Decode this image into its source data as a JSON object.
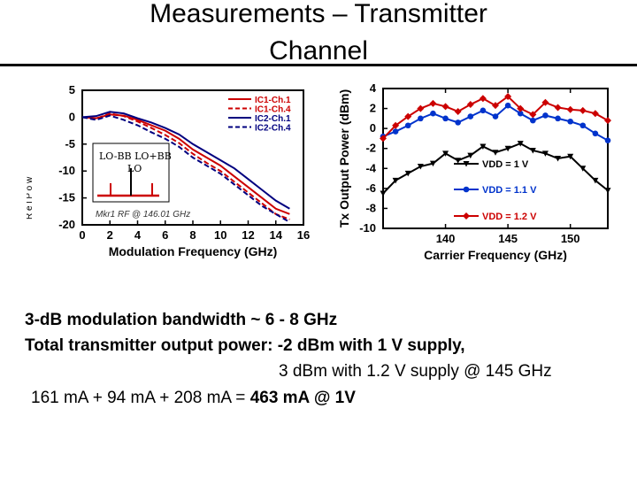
{
  "slide": {
    "title_line1": "Measurements – Transmitter",
    "title_line2": "Channel"
  },
  "bullets": {
    "b1": "3-dB modulation bandwidth ~ 6 - 8 GHz",
    "b2": "Total transmitter output power:  -2 dBm with 1 V supply,",
    "b3": "3 dBm with 1.2 V supply @ 145 GHz",
    "b4_plain": "161 mA + 94 mA + 208 mA = ",
    "b4_bold": "463 mA @ 1V"
  },
  "inset": {
    "lo_bb_label": "LO-BB LO+BB",
    "lo_label": "LO",
    "marker_text": "Mkr1 RF @ 146.01 GHz",
    "ylabel_fragment": "R e l P o w"
  },
  "chart_data": [
    {
      "type": "line",
      "title": "",
      "xlabel": "Modulation Frequency (GHz)",
      "ylabel": "",
      "xlim": [
        0,
        16
      ],
      "ylim": [
        -20,
        5
      ],
      "xticks": [
        "0",
        "2",
        "4",
        "6",
        "8",
        "10",
        "12",
        "14",
        "16"
      ],
      "yticks": [
        "5",
        "0",
        "-5",
        "-10",
        "-15",
        "-20"
      ],
      "x": [
        0,
        1,
        2,
        3,
        4,
        5,
        6,
        7,
        8,
        9,
        10,
        11,
        12,
        13,
        14,
        15
      ],
      "series": [
        {
          "name": "IC1-Ch.1",
          "color": "#cc0000",
          "dash": "solid",
          "values": [
            0,
            -0.2,
            0.5,
            0.3,
            -0.5,
            -1.5,
            -2.5,
            -4,
            -6,
            -7.5,
            -9,
            -11,
            -13,
            -15,
            -17,
            -18
          ]
        },
        {
          "name": "IC1-Ch.4",
          "color": "#cc0000",
          "dash": "dashed",
          "values": [
            0,
            -0.3,
            0.7,
            0.2,
            -0.8,
            -2,
            -3.3,
            -4.8,
            -6.8,
            -8.5,
            -10,
            -12,
            -14,
            -16,
            -18,
            -19
          ]
        },
        {
          "name": "IC2-Ch.1",
          "color": "#00007f",
          "dash": "solid",
          "values": [
            0,
            0.2,
            1,
            0.7,
            -0.2,
            -1,
            -2,
            -3.2,
            -5,
            -6.5,
            -8,
            -9.5,
            -11.5,
            -13.5,
            -15.5,
            -17
          ]
        },
        {
          "name": "IC2-Ch.4",
          "color": "#00007f",
          "dash": "dashed",
          "values": [
            0,
            -0.5,
            0.3,
            -0.5,
            -1.5,
            -2.8,
            -4,
            -5.5,
            -7.5,
            -9,
            -10.5,
            -12.5,
            -14.5,
            -16.5,
            -18,
            -19.5
          ]
        }
      ]
    },
    {
      "type": "line",
      "title": "",
      "xlabel": "Carrier Frequency (GHz)",
      "ylabel": "Tx Output Power (dBm)",
      "xlim": [
        135,
        153
      ],
      "ylim": [
        -10,
        4
      ],
      "xticks": [
        "140",
        "145",
        "150"
      ],
      "yticks": [
        "4",
        "2",
        "0",
        "-2",
        "-4",
        "-6",
        "-8",
        "-10"
      ],
      "x": [
        135,
        136,
        137,
        138,
        139,
        140,
        141,
        142,
        143,
        144,
        145,
        146,
        147,
        148,
        149,
        150,
        151,
        152,
        153
      ],
      "series": [
        {
          "name": "VDD = 1 V",
          "color": "#000000",
          "marker": "triangle-down",
          "values": [
            -6.5,
            -5.2,
            -4.5,
            -3.8,
            -3.5,
            -2.5,
            -3.2,
            -2.7,
            -1.8,
            -2.4,
            -2.0,
            -1.5,
            -2.2,
            -2.5,
            -3.0,
            -2.8,
            -4.0,
            -5.2,
            -6.2
          ]
        },
        {
          "name": "VDD = 1.1 V",
          "color": "#0033cc",
          "marker": "circle",
          "values": [
            -0.8,
            -0.3,
            0.3,
            1.0,
            1.5,
            1.0,
            0.6,
            1.2,
            1.8,
            1.2,
            2.3,
            1.5,
            0.8,
            1.3,
            1.0,
            0.7,
            0.3,
            -0.5,
            -1.2
          ]
        },
        {
          "name": "VDD = 1.2 V",
          "color": "#cc0000",
          "marker": "diamond",
          "values": [
            -1.0,
            0.3,
            1.2,
            2.0,
            2.5,
            2.2,
            1.7,
            2.4,
            3.0,
            2.3,
            3.2,
            2.0,
            1.4,
            2.6,
            2.1,
            1.9,
            1.8,
            1.5,
            0.8
          ]
        }
      ]
    }
  ]
}
